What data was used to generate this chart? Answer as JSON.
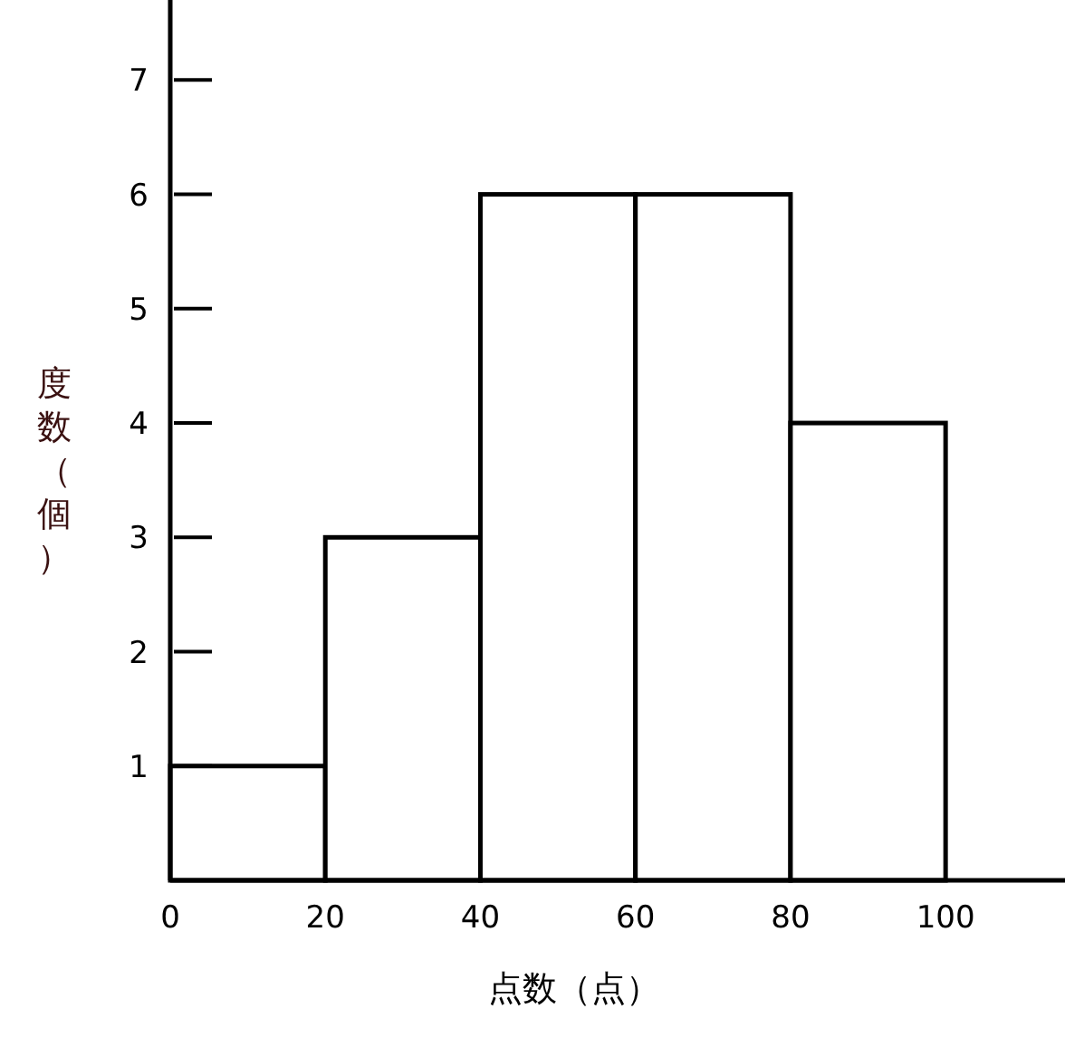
{
  "chart_data": {
    "type": "histogram",
    "xlabel": "点数（点）",
    "ylabel": "度数（個）",
    "bins": [
      0,
      20,
      40,
      60,
      80,
      100
    ],
    "values": [
      1,
      3,
      6,
      6,
      4
    ],
    "color": "#ffffff",
    "xlim": [
      0,
      115.4
    ],
    "xticks": [
      0,
      20,
      40,
      60,
      80,
      100
    ],
    "ylim": [
      0,
      7.7
    ],
    "yticks": [
      1,
      2,
      3,
      4,
      5,
      6,
      7
    ],
    "grid": false
  }
}
